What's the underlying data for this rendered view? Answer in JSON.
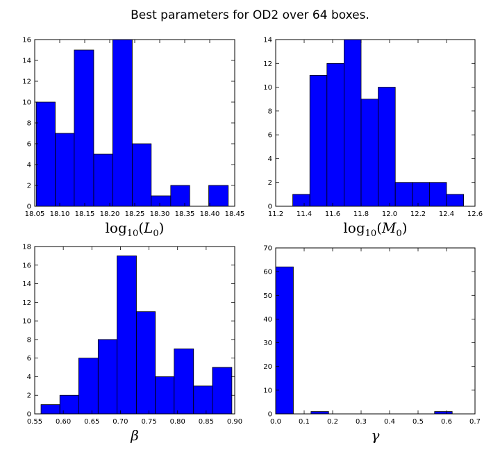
{
  "title": "Best parameters for OD2 over 64 boxes.",
  "colors": {
    "bar": "#0000ff",
    "edge": "#000000"
  },
  "chart_data": [
    {
      "type": "bar",
      "subtype": "histogram",
      "xlabel": "log10(L0)",
      "xlabel_tex": [
        "log",
        "10",
        "(",
        "L",
        "0",
        ")"
      ],
      "xlim": [
        18.05,
        18.45
      ],
      "ylim": [
        0,
        16
      ],
      "xticks": [
        "18.05",
        "18.10",
        "18.15",
        "18.20",
        "18.25",
        "18.30",
        "18.35",
        "18.40",
        "18.45"
      ],
      "yticks": [
        "0",
        "2",
        "4",
        "6",
        "8",
        "10",
        "12",
        "14",
        "16"
      ],
      "bins": [
        {
          "start": 18.053,
          "end": 18.091,
          "count": 10
        },
        {
          "start": 18.091,
          "end": 18.129,
          "count": 7
        },
        {
          "start": 18.129,
          "end": 18.168,
          "count": 15
        },
        {
          "start": 18.168,
          "end": 18.206,
          "count": 5
        },
        {
          "start": 18.206,
          "end": 18.245,
          "count": 16
        },
        {
          "start": 18.245,
          "end": 18.283,
          "count": 6
        },
        {
          "start": 18.283,
          "end": 18.322,
          "count": 1
        },
        {
          "start": 18.322,
          "end": 18.36,
          "count": 2
        },
        {
          "start": 18.36,
          "end": 18.398,
          "count": 0
        },
        {
          "start": 18.398,
          "end": 18.437,
          "count": 2
        }
      ]
    },
    {
      "type": "bar",
      "subtype": "histogram",
      "xlabel": "log10(M0)",
      "xlabel_tex": [
        "log",
        "10",
        "(",
        "M",
        "0",
        ")"
      ],
      "xlim": [
        11.2,
        12.6
      ],
      "ylim": [
        0,
        14
      ],
      "xticks": [
        "11.2",
        "11.4",
        "11.6",
        "11.8",
        "12.0",
        "12.2",
        "12.4",
        "12.6"
      ],
      "yticks": [
        "0",
        "2",
        "4",
        "6",
        "8",
        "10",
        "12",
        "14"
      ],
      "bins": [
        {
          "start": 11.32,
          "end": 11.44,
          "count": 1
        },
        {
          "start": 11.44,
          "end": 11.56,
          "count": 11
        },
        {
          "start": 11.56,
          "end": 11.68,
          "count": 12
        },
        {
          "start": 11.68,
          "end": 11.8,
          "count": 14
        },
        {
          "start": 11.8,
          "end": 11.92,
          "count": 9
        },
        {
          "start": 11.92,
          "end": 12.04,
          "count": 10
        },
        {
          "start": 12.04,
          "end": 12.16,
          "count": 2
        },
        {
          "start": 12.16,
          "end": 12.28,
          "count": 2
        },
        {
          "start": 12.28,
          "end": 12.4,
          "count": 2
        },
        {
          "start": 12.4,
          "end": 12.52,
          "count": 1
        }
      ]
    },
    {
      "type": "bar",
      "subtype": "histogram",
      "xlabel": "β",
      "xlabel_tex": [
        "β"
      ],
      "xlim": [
        0.55,
        0.9
      ],
      "ylim": [
        0,
        18
      ],
      "xticks": [
        "0.55",
        "0.60",
        "0.65",
        "0.70",
        "0.75",
        "0.80",
        "0.85",
        "0.90"
      ],
      "yticks": [
        "0",
        "2",
        "4",
        "6",
        "8",
        "10",
        "12",
        "14",
        "16",
        "18"
      ],
      "bins": [
        {
          "start": 0.561,
          "end": 0.594,
          "count": 1
        },
        {
          "start": 0.594,
          "end": 0.627,
          "count": 2
        },
        {
          "start": 0.627,
          "end": 0.661,
          "count": 6
        },
        {
          "start": 0.661,
          "end": 0.694,
          "count": 8
        },
        {
          "start": 0.694,
          "end": 0.728,
          "count": 17
        },
        {
          "start": 0.728,
          "end": 0.761,
          "count": 11
        },
        {
          "start": 0.761,
          "end": 0.794,
          "count": 4
        },
        {
          "start": 0.794,
          "end": 0.828,
          "count": 7
        },
        {
          "start": 0.828,
          "end": 0.861,
          "count": 3
        },
        {
          "start": 0.861,
          "end": 0.895,
          "count": 5
        }
      ]
    },
    {
      "type": "bar",
      "subtype": "histogram",
      "xlabel": "γ",
      "xlabel_tex": [
        "γ"
      ],
      "xlim": [
        0.0,
        0.7
      ],
      "ylim": [
        0,
        70
      ],
      "xticks": [
        "0.0",
        "0.1",
        "0.2",
        "0.3",
        "0.4",
        "0.5",
        "0.6",
        "0.7"
      ],
      "yticks": [
        "0",
        "10",
        "20",
        "30",
        "40",
        "50",
        "60",
        "70"
      ],
      "bins": [
        {
          "start": 0.0,
          "end": 0.062,
          "count": 62
        },
        {
          "start": 0.062,
          "end": 0.124,
          "count": 0
        },
        {
          "start": 0.124,
          "end": 0.186,
          "count": 1
        },
        {
          "start": 0.186,
          "end": 0.248,
          "count": 0
        },
        {
          "start": 0.248,
          "end": 0.31,
          "count": 0
        },
        {
          "start": 0.31,
          "end": 0.372,
          "count": 0
        },
        {
          "start": 0.372,
          "end": 0.434,
          "count": 0
        },
        {
          "start": 0.434,
          "end": 0.496,
          "count": 0
        },
        {
          "start": 0.496,
          "end": 0.558,
          "count": 0
        },
        {
          "start": 0.558,
          "end": 0.62,
          "count": 1
        }
      ]
    }
  ]
}
